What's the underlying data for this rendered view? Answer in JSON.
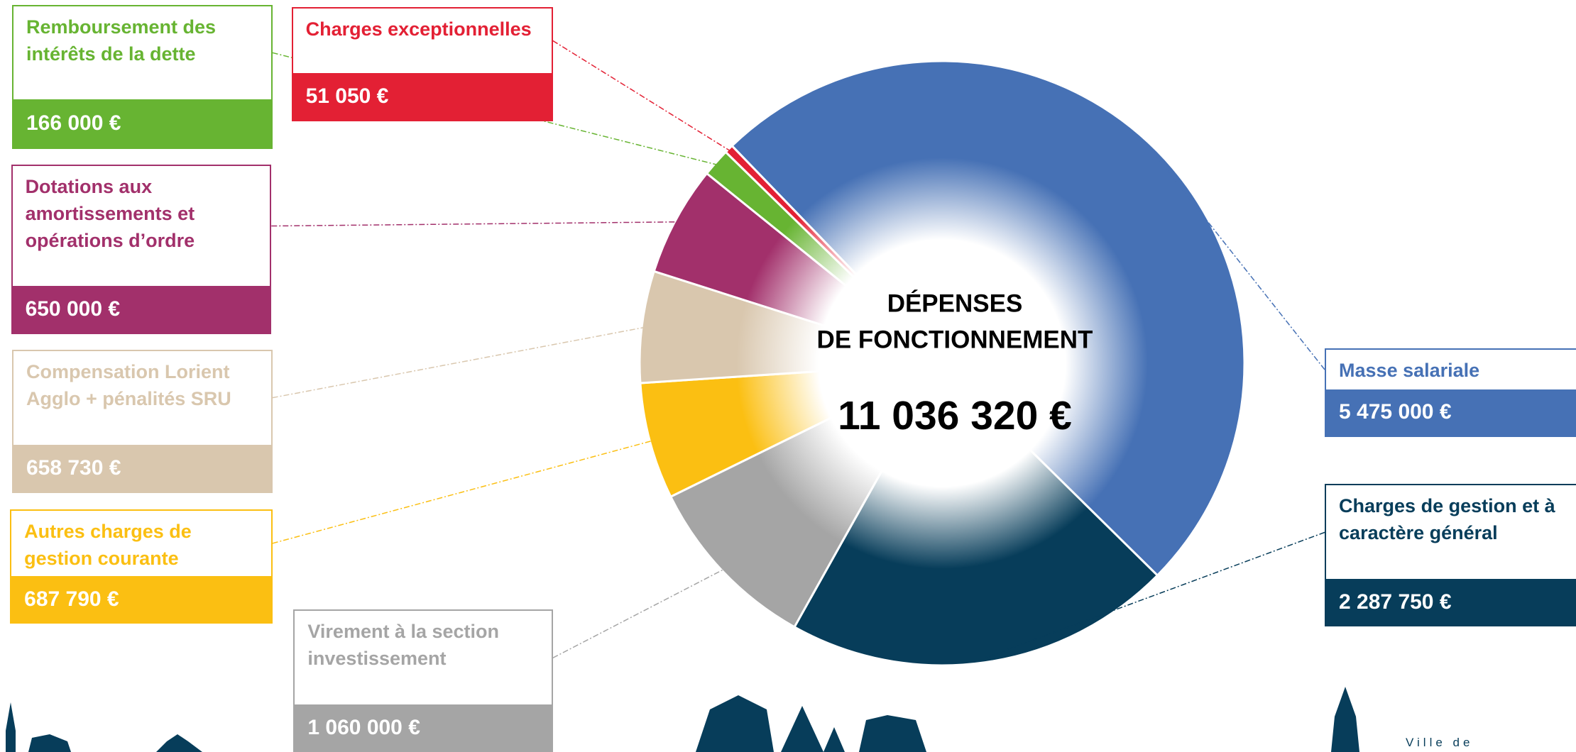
{
  "chart_data": {
    "type": "pie",
    "title": [
      "DÉPENSES",
      "DE FONCTIONNEMENT"
    ],
    "total": 11036320,
    "total_label": "11 036 320 €",
    "categories": [
      "Masse salariale",
      "Charges de gestion et à\ncaractère général",
      "Virement à la section\ninvestissement",
      "Autres charges de\ngestion courante",
      "Compensation Lorient\nAgglo + pénalités SRU",
      "Dotations aux\namortissements et\nopérations d’ordre",
      "Remboursement des\nintérêts de la dette",
      "Charges exceptionnelles"
    ],
    "values": [
      5475000,
      2287750,
      1060000,
      687790,
      658730,
      650000,
      166000,
      51050
    ],
    "value_labels": [
      "5 475 000 €",
      "2 287 750 €",
      "1 060 000 €",
      "687 790 €",
      "658 730 €",
      "650 000 €",
      "166 000 €",
      "51 050 €"
    ],
    "colors": [
      "#4671b5",
      "#073d5a",
      "#a5a5a5",
      "#fbbf12",
      "#d9c7ae",
      "#a2306b",
      "#67b432",
      "#e32034"
    ]
  },
  "logo": "Ville de"
}
